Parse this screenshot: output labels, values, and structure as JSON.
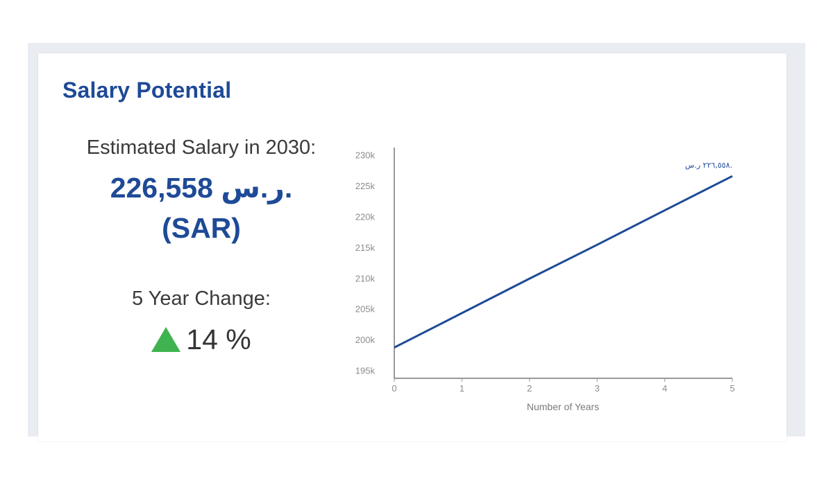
{
  "title": "Salary Potential",
  "estimate": {
    "label": "Estimated Salary in 2030:",
    "amount_line1": "226,558 ر.س.",
    "amount_line2": "(SAR)"
  },
  "change": {
    "label": "5 Year Change:",
    "value": "14 %",
    "direction": "up",
    "color": "#3fb34f"
  },
  "chart_data": {
    "type": "line",
    "x": [
      0,
      1,
      2,
      3,
      4,
      5
    ],
    "x_tick_labels": [
      "0",
      "1",
      "2",
      "3",
      "4",
      "5"
    ],
    "y_tick_values": [
      195000,
      200000,
      205000,
      210000,
      215000,
      220000,
      225000,
      230000
    ],
    "y_tick_labels": [
      "195k",
      "200k",
      "205k",
      "210k",
      "215k",
      "220k",
      "225k",
      "230k"
    ],
    "series": [
      {
        "values": [
          198700,
          204300,
          209900,
          215400,
          221000,
          226558
        ],
        "color": "#1e4a97"
      }
    ],
    "xlabel": "Number of Years",
    "ylabel": "",
    "end_label": "٢٢٦,٥٥٨ ر.س.",
    "xlim": [
      0,
      5
    ],
    "ylim": [
      193700,
      231200
    ],
    "grid": false
  }
}
